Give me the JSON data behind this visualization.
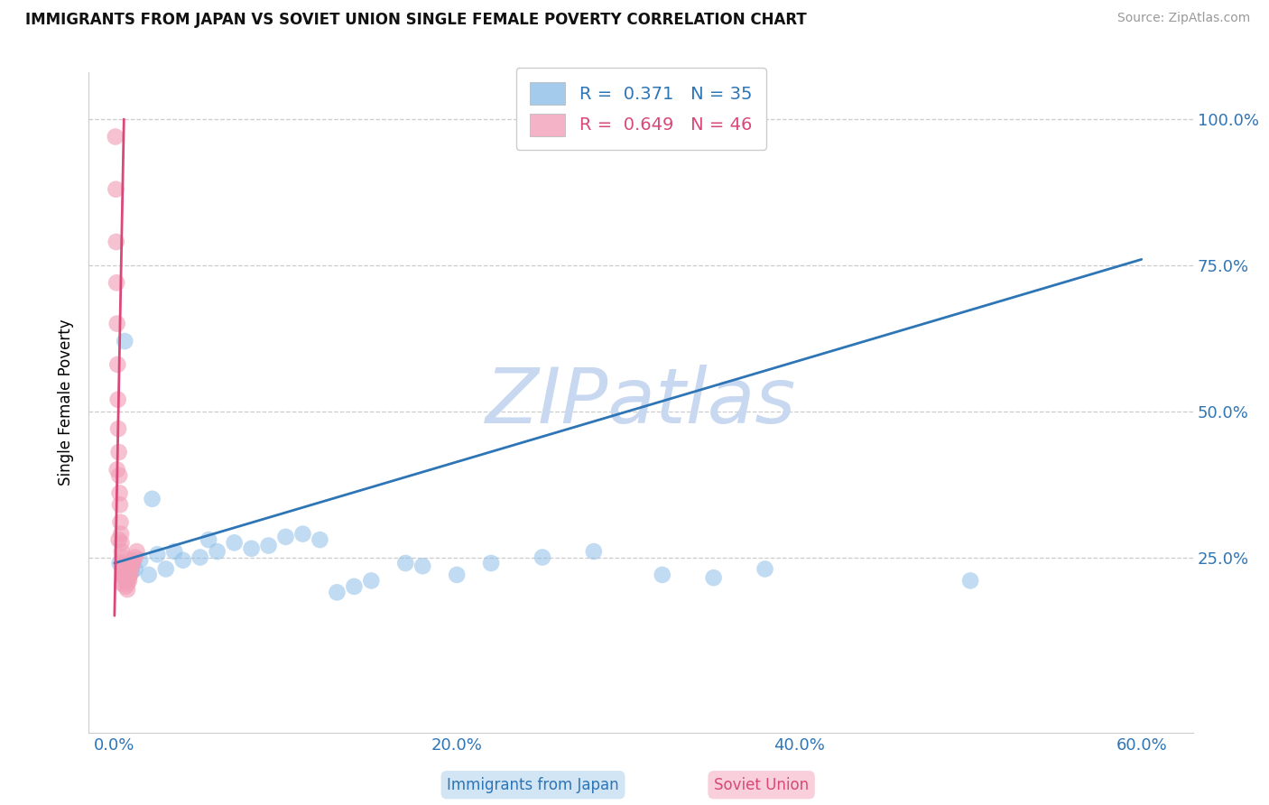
{
  "title": "IMMIGRANTS FROM JAPAN VS SOVIET UNION SINGLE FEMALE POVERTY CORRELATION CHART",
  "source_text": "Source: ZipAtlas.com",
  "ylabel": "Single Female Poverty",
  "xlim": [
    -1.5,
    63.0
  ],
  "ylim": [
    -5.0,
    108.0
  ],
  "x_ticks": [
    0.0,
    20.0,
    40.0,
    60.0
  ],
  "y_ticks": [
    25.0,
    50.0,
    75.0,
    100.0
  ],
  "legend_line1": "R =  0.371   N = 35",
  "legend_line2": "R =  0.649   N = 46",
  "legend_label_japan": "Immigrants from Japan",
  "legend_label_soviet": "Soviet Union",
  "blue_scatter_color": "#8dbfe8",
  "pink_scatter_color": "#f2a0b8",
  "blue_line_color": "#2e75b6",
  "pink_line_color": "#d94878",
  "grid_color": "#cccccc",
  "watermark_text": "ZIPatlas",
  "watermark_color": "#c8d8f0",
  "japan_x": [
    0.3,
    0.5,
    0.8,
    1.0,
    1.2,
    1.5,
    2.0,
    2.5,
    3.0,
    3.5,
    4.0,
    5.0,
    5.5,
    6.0,
    7.0,
    8.0,
    9.0,
    10.0,
    11.0,
    12.0,
    13.0,
    14.0,
    15.0,
    17.0,
    18.0,
    20.0,
    22.0,
    25.0,
    28.0,
    32.0,
    35.0,
    38.0,
    50.0,
    2.2,
    0.6
  ],
  "japan_y": [
    24.0,
    22.0,
    21.5,
    22.5,
    23.0,
    24.5,
    22.0,
    25.5,
    23.0,
    26.0,
    24.5,
    25.0,
    28.0,
    26.0,
    27.5,
    26.5,
    27.0,
    28.5,
    29.0,
    28.0,
    19.0,
    20.0,
    21.0,
    24.0,
    23.5,
    22.0,
    24.0,
    25.0,
    26.0,
    22.0,
    21.5,
    23.0,
    21.0,
    35.0,
    62.0
  ],
  "soviet_x": [
    0.05,
    0.08,
    0.1,
    0.12,
    0.15,
    0.18,
    0.2,
    0.22,
    0.25,
    0.28,
    0.3,
    0.32,
    0.35,
    0.38,
    0.4,
    0.42,
    0.45,
    0.48,
    0.5,
    0.52,
    0.55,
    0.58,
    0.6,
    0.62,
    0.65,
    0.68,
    0.7,
    0.72,
    0.75,
    0.78,
    0.8,
    0.82,
    0.85,
    0.9,
    0.95,
    1.0,
    1.05,
    1.1,
    1.2,
    1.3,
    0.15,
    0.25,
    0.45,
    0.55,
    0.65,
    0.75
  ],
  "soviet_y": [
    97.0,
    88.0,
    79.0,
    72.0,
    65.0,
    58.0,
    52.0,
    47.0,
    43.0,
    39.0,
    36.0,
    34.0,
    31.0,
    29.0,
    27.5,
    26.0,
    25.0,
    24.0,
    23.5,
    23.0,
    22.5,
    22.0,
    22.5,
    21.5,
    21.0,
    21.5,
    22.0,
    21.0,
    20.5,
    22.5,
    22.0,
    21.5,
    21.0,
    22.0,
    23.0,
    23.5,
    24.0,
    24.5,
    25.0,
    26.0,
    40.0,
    28.0,
    20.5,
    21.5,
    20.0,
    19.5
  ],
  "blue_line_x0": 0.0,
  "blue_line_x1": 60.0,
  "blue_line_y0": 24.0,
  "blue_line_y1": 76.0,
  "pink_line_x0": 0.5,
  "pink_line_x1": 0.5,
  "pink_line_y0": 25.0,
  "pink_line_y1": 100.0
}
